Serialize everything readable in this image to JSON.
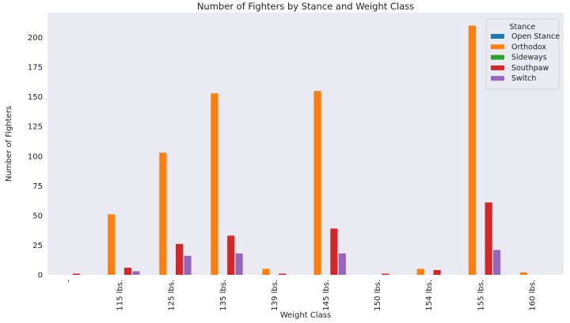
{
  "chart_data": {
    "type": "bar",
    "title": "Number of Fighters by Stance and Weight Class",
    "xlabel": "Weight Class",
    "ylabel": "Number of Fighters",
    "ylim": [
      0,
      221
    ],
    "yticks": [
      0,
      25,
      50,
      75,
      100,
      125,
      150,
      175,
      200
    ],
    "grid": false,
    "legend_title": "Stance",
    "legend_position": "top-right",
    "categories": [
      "-",
      "115 lbs.",
      "125 lbs.",
      "135 lbs.",
      "139 lbs.",
      "145 lbs.",
      "150 lbs.",
      "154 lbs.",
      "155 lbs.",
      "160 lbs."
    ],
    "series": [
      {
        "name": "Open Stance",
        "color": "#1f77b4",
        "values": [
          0,
          0,
          0,
          0,
          0,
          0,
          0,
          0,
          0,
          0
        ]
      },
      {
        "name": "Orthodox",
        "color": "#ff7f0e",
        "values": [
          0,
          51,
          103,
          153,
          5,
          155,
          0,
          5,
          210,
          2
        ]
      },
      {
        "name": "Sideways",
        "color": "#2ca02c",
        "values": [
          0,
          0,
          0,
          0,
          0,
          0,
          0,
          0,
          0,
          0
        ]
      },
      {
        "name": "Southpaw",
        "color": "#d62728",
        "values": [
          1,
          6,
          26,
          33,
          1,
          39,
          1,
          4,
          61,
          0
        ]
      },
      {
        "name": "Switch",
        "color": "#9467bd",
        "values": [
          0,
          3,
          16,
          18,
          0,
          18,
          0,
          0,
          21,
          0
        ]
      }
    ]
  }
}
